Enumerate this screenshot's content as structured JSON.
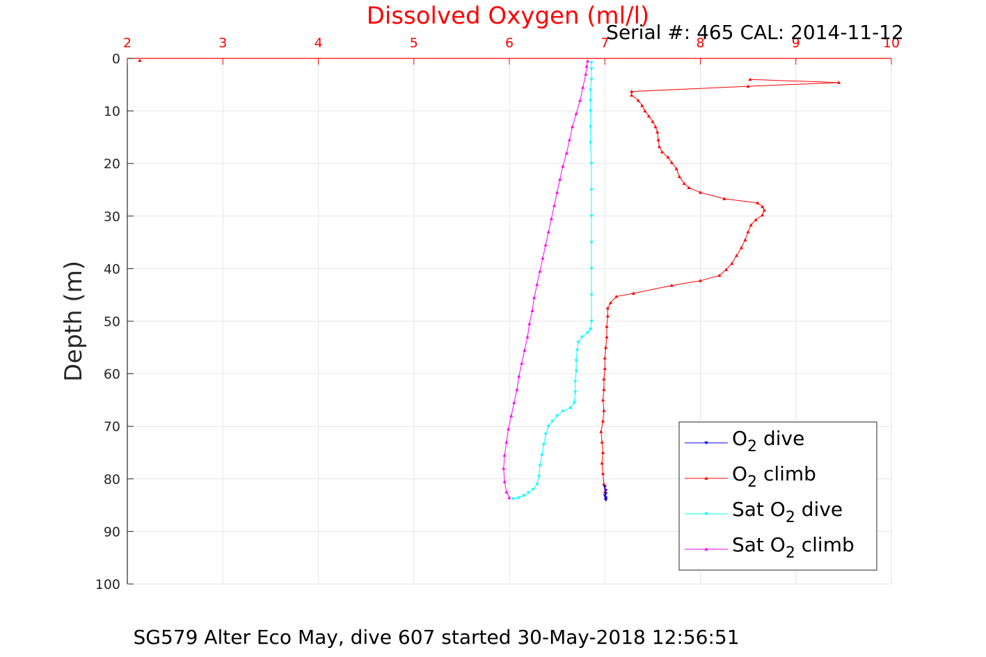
{
  "chart_data": {
    "type": "line",
    "title": "Dissolved Oxygen (ml/l)",
    "subtitle": "Serial #: 465  CAL: 2014-11-12",
    "footer": "SG579 Alter Eco May, dive 607 started 30-May-2018 12:56:51",
    "xlabel": "",
    "ylabel": "Depth (m)",
    "xlim": [
      2,
      10
    ],
    "ylim": [
      0,
      100
    ],
    "y_reversed": true,
    "x_axis_position": "top",
    "x_ticks": [
      2,
      3,
      4,
      5,
      6,
      7,
      8,
      9,
      10
    ],
    "y_ticks": [
      0,
      10,
      20,
      30,
      40,
      50,
      60,
      70,
      80,
      90,
      100
    ],
    "grid": true,
    "legend_position": "bottom-right",
    "colors": {
      "axis_top": "#ff0000",
      "axis_left": "#262626",
      "grid": "#e6e6e6",
      "o2_dive": "#0000ff",
      "o2_climb": "#ff0000",
      "sat_dive": "#00ffff",
      "sat_climb": "#ff00ff"
    },
    "series": [
      {
        "key": "o2_dive",
        "legend": {
          "pre": "O",
          "sub": "2",
          "post": " dive"
        },
        "marker": "triangle-down",
        "points": [
          [
            7.0,
            81.5
          ],
          [
            7.01,
            82.2
          ],
          [
            7.01,
            82.8
          ],
          [
            7.0,
            83.2
          ],
          [
            7.01,
            83.6
          ],
          [
            7.01,
            84.0
          ]
        ]
      },
      {
        "key": "o2_climb",
        "legend": {
          "pre": "O",
          "sub": "2",
          "post": " climb"
        },
        "marker": "triangle-up",
        "points": [
          [
            7.01,
            83.5
          ],
          [
            7.0,
            82.5
          ],
          [
            6.99,
            81.0
          ],
          [
            6.98,
            79.0
          ],
          [
            6.97,
            77.0
          ],
          [
            6.98,
            75.0
          ],
          [
            6.97,
            73.0
          ],
          [
            6.96,
            71.0
          ],
          [
            6.98,
            69.0
          ],
          [
            6.99,
            67.0
          ],
          [
            6.98,
            65.0
          ],
          [
            6.99,
            63.0
          ],
          [
            6.99,
            61.0
          ],
          [
            7.0,
            59.0
          ],
          [
            7.0,
            57.0
          ],
          [
            7.01,
            55.0
          ],
          [
            7.02,
            53.0
          ],
          [
            7.02,
            51.0
          ],
          [
            7.03,
            49.0
          ],
          [
            7.03,
            47.5
          ],
          [
            7.06,
            46.5
          ],
          [
            7.12,
            45.3
          ],
          [
            7.3,
            44.7
          ],
          [
            7.7,
            43.2
          ],
          [
            8.0,
            42.3
          ],
          [
            8.2,
            41.3
          ],
          [
            8.27,
            40.2
          ],
          [
            8.33,
            39.0
          ],
          [
            8.38,
            37.5
          ],
          [
            8.43,
            36.0
          ],
          [
            8.47,
            34.5
          ],
          [
            8.5,
            33.0
          ],
          [
            8.53,
            31.7
          ],
          [
            8.58,
            30.7
          ],
          [
            8.65,
            29.8
          ],
          [
            8.67,
            28.9
          ],
          [
            8.65,
            28.2
          ],
          [
            8.6,
            27.5
          ],
          [
            8.25,
            26.7
          ],
          [
            8.0,
            25.5
          ],
          [
            7.88,
            24.6
          ],
          [
            7.83,
            23.8
          ],
          [
            7.78,
            22.5
          ],
          [
            7.75,
            21.0
          ],
          [
            7.7,
            19.8
          ],
          [
            7.66,
            18.8
          ],
          [
            7.6,
            17.8
          ],
          [
            7.57,
            16.8
          ],
          [
            7.56,
            15.5
          ],
          [
            7.55,
            14.0
          ],
          [
            7.53,
            13.0
          ],
          [
            7.5,
            12.0
          ],
          [
            7.46,
            11.0
          ],
          [
            7.42,
            10.0
          ],
          [
            7.39,
            9.0
          ],
          [
            7.35,
            8.0
          ],
          [
            7.28,
            7.0
          ],
          [
            7.28,
            6.3
          ],
          [
            8.5,
            5.3
          ],
          [
            9.45,
            4.6
          ],
          [
            8.52,
            4.0
          ]
        ],
        "isolated": [
          [
            2.13,
            0.4
          ]
        ]
      },
      {
        "key": "sat_dive",
        "legend": {
          "pre": "Sat O",
          "sub": "2",
          "post": " dive"
        },
        "marker": "triangle-down",
        "points": [
          [
            6.86,
            0.8
          ],
          [
            6.86,
            2.0
          ],
          [
            6.86,
            4.0
          ],
          [
            6.85,
            6.0
          ],
          [
            6.85,
            8.0
          ],
          [
            6.85,
            10.0
          ],
          [
            6.85,
            13.0
          ],
          [
            6.85,
            16.0
          ],
          [
            6.86,
            20.0
          ],
          [
            6.86,
            25.0
          ],
          [
            6.86,
            30.0
          ],
          [
            6.86,
            35.0
          ],
          [
            6.86,
            40.0
          ],
          [
            6.86,
            45.0
          ],
          [
            6.86,
            50.0
          ],
          [
            6.85,
            51.5
          ],
          [
            6.82,
            52.2
          ],
          [
            6.76,
            53.0
          ],
          [
            6.72,
            54.0
          ],
          [
            6.71,
            55.5
          ],
          [
            6.7,
            57.5
          ],
          [
            6.7,
            59.5
          ],
          [
            6.69,
            61.5
          ],
          [
            6.69,
            63.5
          ],
          [
            6.68,
            65.5
          ],
          [
            6.64,
            66.5
          ],
          [
            6.56,
            67.1
          ],
          [
            6.5,
            68.0
          ],
          [
            6.45,
            69.0
          ],
          [
            6.41,
            70.0
          ],
          [
            6.38,
            71.5
          ],
          [
            6.36,
            73.5
          ],
          [
            6.34,
            75.5
          ],
          [
            6.32,
            77.5
          ],
          [
            6.31,
            79.5
          ],
          [
            6.29,
            81.0
          ],
          [
            6.25,
            82.0
          ],
          [
            6.2,
            82.6
          ],
          [
            6.15,
            83.2
          ],
          [
            6.1,
            83.6
          ],
          [
            6.04,
            83.8
          ]
        ]
      },
      {
        "key": "sat_climb",
        "legend": {
          "pre": "Sat O",
          "sub": "2",
          "post": " climb"
        },
        "marker": "triangle-up",
        "points": [
          [
            6.0,
            83.6
          ],
          [
            5.97,
            82.5
          ],
          [
            5.95,
            80.5
          ],
          [
            5.94,
            78.0
          ],
          [
            5.95,
            75.5
          ],
          [
            5.97,
            73.0
          ],
          [
            5.99,
            70.5
          ],
          [
            6.02,
            68.0
          ],
          [
            6.05,
            65.5
          ],
          [
            6.08,
            63.0
          ],
          [
            6.1,
            60.5
          ],
          [
            6.13,
            58.0
          ],
          [
            6.16,
            55.5
          ],
          [
            6.19,
            53.0
          ],
          [
            6.21,
            50.5
          ],
          [
            6.24,
            48.0
          ],
          [
            6.26,
            45.5
          ],
          [
            6.29,
            43.0
          ],
          [
            6.32,
            40.5
          ],
          [
            6.35,
            38.0
          ],
          [
            6.38,
            35.5
          ],
          [
            6.41,
            33.0
          ],
          [
            6.44,
            30.5
          ],
          [
            6.47,
            28.0
          ],
          [
            6.5,
            25.5
          ],
          [
            6.53,
            23.0
          ],
          [
            6.56,
            20.5
          ],
          [
            6.6,
            18.0
          ],
          [
            6.63,
            15.5
          ],
          [
            6.66,
            13.0
          ],
          [
            6.7,
            10.5
          ],
          [
            6.74,
            8.0
          ],
          [
            6.77,
            5.5
          ],
          [
            6.8,
            3.0
          ],
          [
            6.81,
            1.5
          ],
          [
            6.82,
            0.5
          ]
        ]
      }
    ]
  }
}
